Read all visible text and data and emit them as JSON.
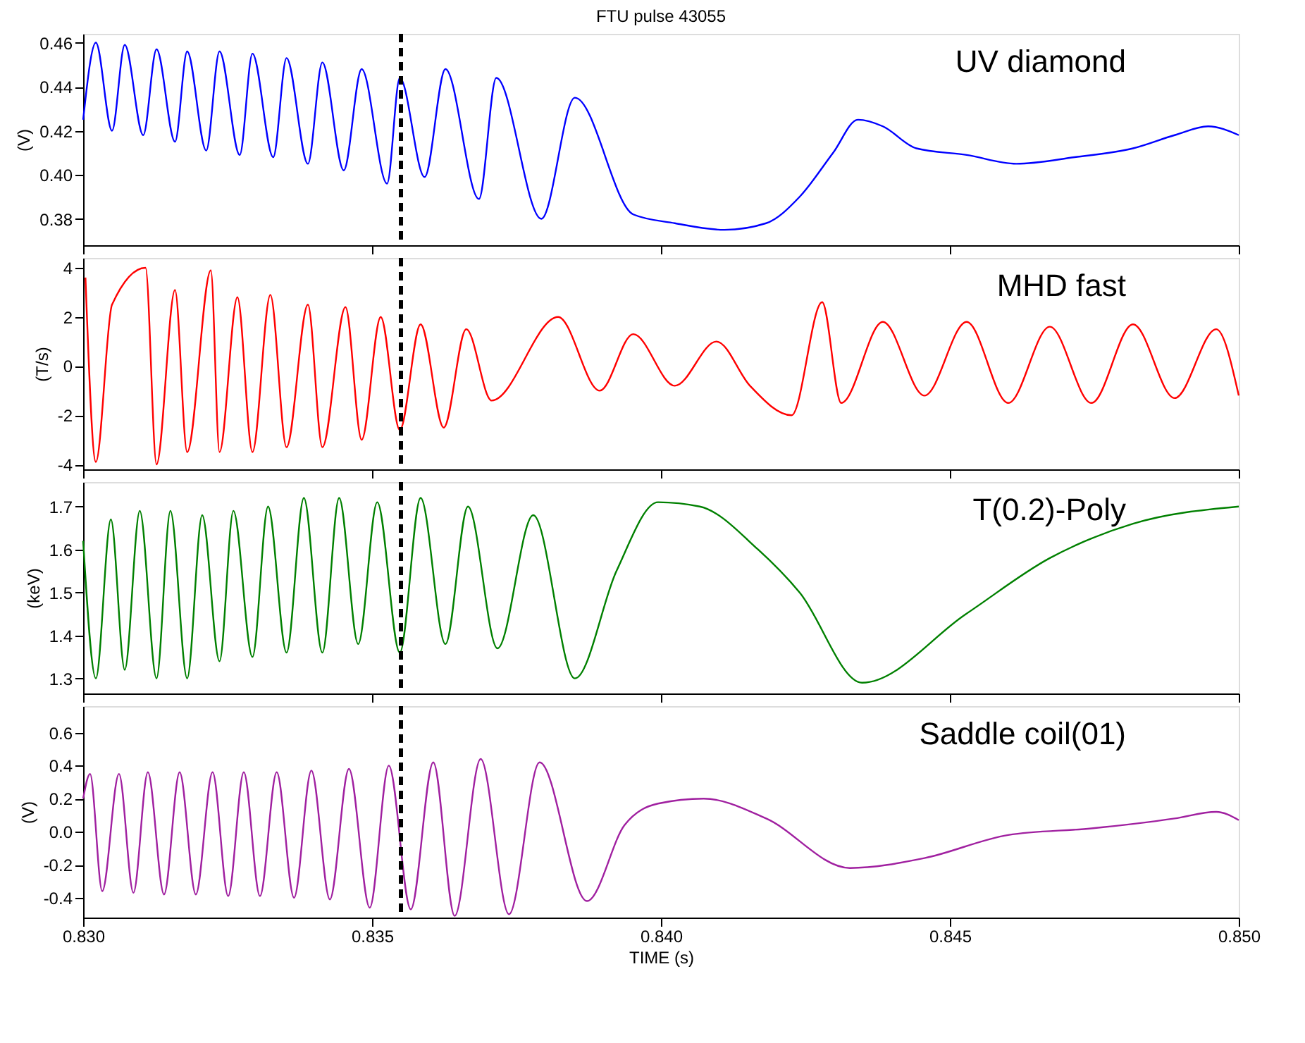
{
  "chart_data": [
    {
      "type": "line",
      "title": "FTU pulse 43055",
      "ylabel": "(V)",
      "tick_labels": "y",
      "grid": false,
      "xlim": [
        0.83,
        0.85
      ],
      "xticks": [
        {
          "value": 0.83,
          "label": null
        },
        {
          "value": 0.835,
          "label": null
        },
        {
          "value": 0.84,
          "label": null
        },
        {
          "value": 0.845,
          "label": null
        },
        {
          "value": 0.85,
          "label": null
        }
      ],
      "ylim": [
        0.368,
        0.464
      ],
      "yticks": [
        0.38,
        {
          "value": 0.4,
          "label": "0.40"
        },
        0.42,
        0.44,
        0.46
      ],
      "ref_lines": [
        {
          "axis": "x",
          "value": 0.8355,
          "color": "#000000",
          "line_style": "dashed"
        }
      ],
      "series": [
        {
          "name": "UV diamond",
          "color": "#0000ff",
          "x": [
            0.83,
            0.83022,
            0.8305,
            0.83072,
            0.83104,
            0.83127,
            0.83159,
            0.8318,
            0.83213,
            0.83236,
            0.83271,
            0.83293,
            0.83329,
            0.83352,
            0.83389,
            0.83414,
            0.83451,
            0.83482,
            0.83526,
            0.83548,
            0.83591,
            0.83627,
            0.83685,
            0.83715,
            0.83793,
            0.83851,
            0.83952,
            0.84024,
            0.8411,
            0.84182,
            0.8424,
            0.84298,
            0.84341,
            0.84384,
            0.84442,
            0.84529,
            0.84615,
            0.84716,
            0.84817,
            0.84889,
            0.84947,
            0.85
          ],
          "values": [
            0.425,
            0.46,
            0.42,
            0.459,
            0.418,
            0.457,
            0.415,
            0.456,
            0.411,
            0.456,
            0.409,
            0.455,
            0.408,
            0.453,
            0.405,
            0.451,
            0.402,
            0.448,
            0.396,
            0.444,
            0.399,
            0.448,
            0.389,
            0.444,
            0.38,
            0.435,
            0.382,
            0.378,
            0.375,
            0.378,
            0.39,
            0.41,
            0.425,
            0.422,
            0.412,
            0.409,
            0.405,
            0.408,
            0.412,
            0.418,
            0.422,
            0.418
          ]
        }
      ]
    },
    {
      "type": "line",
      "ylabel": "(T/s)",
      "tick_labels": "y",
      "grid": false,
      "xlim": [
        0.83,
        0.85
      ],
      "xticks": [
        {
          "value": 0.83,
          "label": null
        },
        {
          "value": 0.835,
          "label": null
        },
        {
          "value": 0.84,
          "label": null
        },
        {
          "value": 0.845,
          "label": null
        },
        {
          "value": 0.85,
          "label": null
        }
      ],
      "ylim": [
        -4.2,
        4.4
      ],
      "yticks": [
        -4,
        -2,
        0,
        2,
        4
      ],
      "ref_lines": [
        {
          "axis": "x",
          "value": 0.8355,
          "color": "#000000",
          "line_style": "dashed"
        }
      ],
      "series": [
        {
          "name": "MHD fast",
          "color": "#ff0000",
          "x": [
            0.83004,
            0.83022,
            0.8305,
            0.83108,
            0.83127,
            0.83159,
            0.8318,
            0.83221,
            0.83236,
            0.83267,
            0.83293,
            0.83324,
            0.83352,
            0.83389,
            0.83414,
            0.83454,
            0.83482,
            0.83515,
            0.83548,
            0.83584,
            0.83624,
            0.83663,
            0.83707,
            0.83822,
            0.83894,
            0.83952,
            0.84024,
            0.84096,
            0.84154,
            0.84226,
            0.84279,
            0.84312,
            0.84384,
            0.84456,
            0.84529,
            0.84601,
            0.84673,
            0.84745,
            0.84817,
            0.84889,
            0.84961,
            0.85
          ],
          "values": [
            3.6,
            -3.9,
            2.5,
            4.0,
            -4.0,
            3.1,
            -3.5,
            3.9,
            -3.5,
            2.8,
            -3.5,
            2.9,
            -3.3,
            2.5,
            -3.3,
            2.4,
            -3.0,
            2.0,
            -2.6,
            1.7,
            -2.5,
            1.5,
            -1.4,
            2.0,
            -1.0,
            1.3,
            -0.8,
            1.0,
            -0.8,
            -2.0,
            2.6,
            -1.5,
            1.8,
            -1.2,
            1.8,
            -1.5,
            1.6,
            -1.5,
            1.7,
            -1.3,
            1.5,
            -1.2
          ]
        }
      ]
    },
    {
      "type": "line",
      "ylabel": "(keV)",
      "tick_labels": "y",
      "grid": false,
      "xlim": [
        0.83,
        0.85
      ],
      "xticks": [
        {
          "value": 0.83,
          "label": null
        },
        {
          "value": 0.835,
          "label": null
        },
        {
          "value": 0.84,
          "label": null
        },
        {
          "value": 0.845,
          "label": null
        },
        {
          "value": 0.85,
          "label": null
        }
      ],
      "ylim": [
        1.265,
        1.757
      ],
      "yticks": [
        1.3,
        1.4,
        1.5,
        1.6,
        1.7
      ],
      "ref_lines": [
        {
          "axis": "x",
          "value": 0.8355,
          "color": "#000000",
          "line_style": "dashed"
        }
      ],
      "series": [
        {
          "name": "T(0.2)-Poly",
          "color": "#008000",
          "x": [
            0.83,
            0.83022,
            0.83048,
            0.83072,
            0.83098,
            0.83127,
            0.83151,
            0.8318,
            0.83206,
            0.83236,
            0.8326,
            0.83293,
            0.8332,
            0.83352,
            0.83382,
            0.83414,
            0.83443,
            0.83476,
            0.83509,
            0.83548,
            0.83584,
            0.83627,
            0.83666,
            0.83717,
            0.83779,
            0.83851,
            0.83923,
            0.83995,
            0.84067,
            0.84168,
            0.8424,
            0.84348,
            0.84528,
            0.84673,
            0.84817,
            0.85
          ],
          "values": [
            1.62,
            1.3,
            1.67,
            1.32,
            1.69,
            1.3,
            1.69,
            1.3,
            1.68,
            1.34,
            1.69,
            1.35,
            1.7,
            1.36,
            1.72,
            1.36,
            1.72,
            1.38,
            1.71,
            1.36,
            1.72,
            1.38,
            1.7,
            1.37,
            1.68,
            1.3,
            1.55,
            1.71,
            1.7,
            1.6,
            1.5,
            1.29,
            1.45,
            1.58,
            1.66,
            1.7
          ]
        }
      ]
    },
    {
      "type": "line",
      "ylabel": "(V)",
      "xlabel": "TIME (s)",
      "grid": false,
      "xlim": [
        0.83,
        0.85
      ],
      "xticks": [
        {
          "value": 0.83,
          "label": "0.830"
        },
        {
          "value": 0.835,
          "label": "0.835"
        },
        {
          "value": 0.84,
          "label": "0.840"
        },
        {
          "value": 0.845,
          "label": "0.845"
        },
        {
          "value": 0.85,
          "label": "0.850"
        }
      ],
      "ylim": [
        -0.52,
        0.76
      ],
      "yticks": [
        -0.4,
        -0.2,
        {
          "value": 0,
          "label": "0.0"
        },
        0.2,
        0.4,
        0.6
      ],
      "ref_lines": [
        {
          "axis": "x",
          "value": 0.8355,
          "color": "#000000",
          "line_style": "dashed"
        }
      ],
      "series": [
        {
          "name": "Saddle coil(01)",
          "color": "#a020a0",
          "x": [
            0.83,
            0.83012,
            0.83033,
            0.83062,
            0.83087,
            0.83112,
            0.8314,
            0.83167,
            0.83195,
            0.83224,
            0.83251,
            0.83278,
            0.83306,
            0.83335,
            0.83365,
            0.83395,
            0.83427,
            0.8346,
            0.83496,
            0.83529,
            0.83567,
            0.83606,
            0.83643,
            0.83688,
            0.83737,
            0.8379,
            0.83872,
            0.83937,
            0.83995,
            0.84074,
            0.84182,
            0.84327,
            0.84456,
            0.84601,
            0.84745,
            0.84889,
            0.84961,
            0.85
          ],
          "values": [
            0.2,
            0.35,
            -0.36,
            0.35,
            -0.37,
            0.36,
            -0.38,
            0.36,
            -0.38,
            0.36,
            -0.39,
            0.36,
            -0.39,
            0.36,
            -0.4,
            0.37,
            -0.41,
            0.38,
            -0.46,
            0.4,
            -0.47,
            0.42,
            -0.51,
            0.44,
            -0.5,
            0.42,
            -0.42,
            0.04,
            0.17,
            0.2,
            0.08,
            -0.22,
            -0.16,
            -0.02,
            0.02,
            0.08,
            0.12,
            0.07
          ]
        }
      ]
    }
  ]
}
